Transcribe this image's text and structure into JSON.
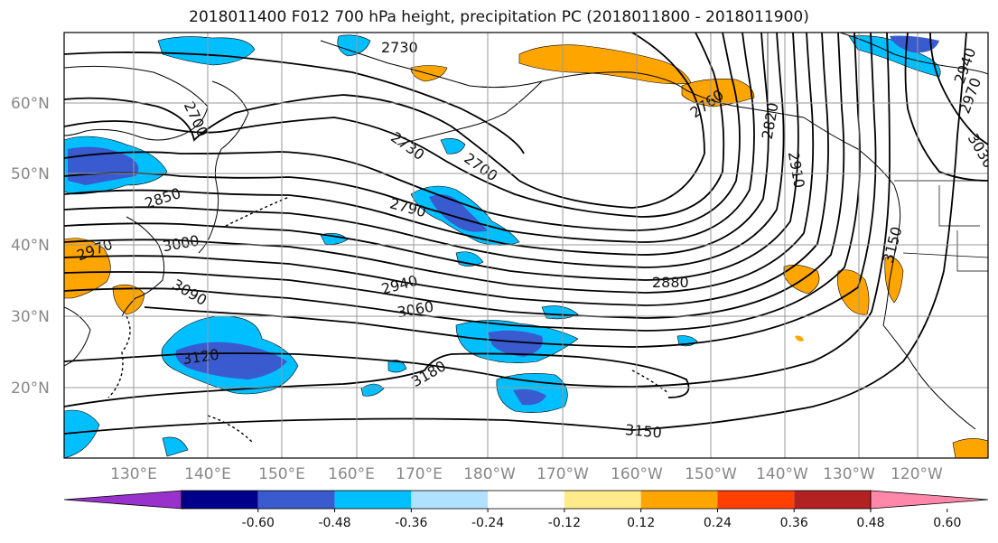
{
  "title": "2018011400 F012 700 hPa height, precipitation PC (2018011800 - 2018011900)",
  "lat_labels": [
    "60°N",
    "50°N",
    "40°N",
    "30°N",
    "20°N"
  ],
  "lon_labels": [
    "130°E",
    "140°E",
    "150°E",
    "160°E",
    "170°E",
    "180°W",
    "170°W",
    "160°W",
    "150°W",
    "140°W",
    "130°W",
    "120°W"
  ],
  "contour_labels": [
    "2730",
    "2700",
    "2730",
    "2700",
    "2850",
    "2790",
    "2970",
    "3000",
    "3090",
    "2940",
    "3060",
    "2880",
    "3120",
    "3180",
    "3150",
    "3150",
    "2820",
    "2910",
    "2760",
    "3030",
    "2940",
    "2970"
  ],
  "colorbar": {
    "ticks": [
      "-0.60",
      "-0.48",
      "-0.36",
      "-0.24",
      "-0.12",
      "0.12",
      "0.24",
      "0.36",
      "0.48",
      "0.60"
    ],
    "colors": [
      "#9932cc",
      "#00008b",
      "#3a5bd0",
      "#00bfff",
      "#b0e2ff",
      "#ffffff",
      "#ffeb8a",
      "#ffa500",
      "#ff4000",
      "#b22222",
      "#ff88aa"
    ]
  }
}
